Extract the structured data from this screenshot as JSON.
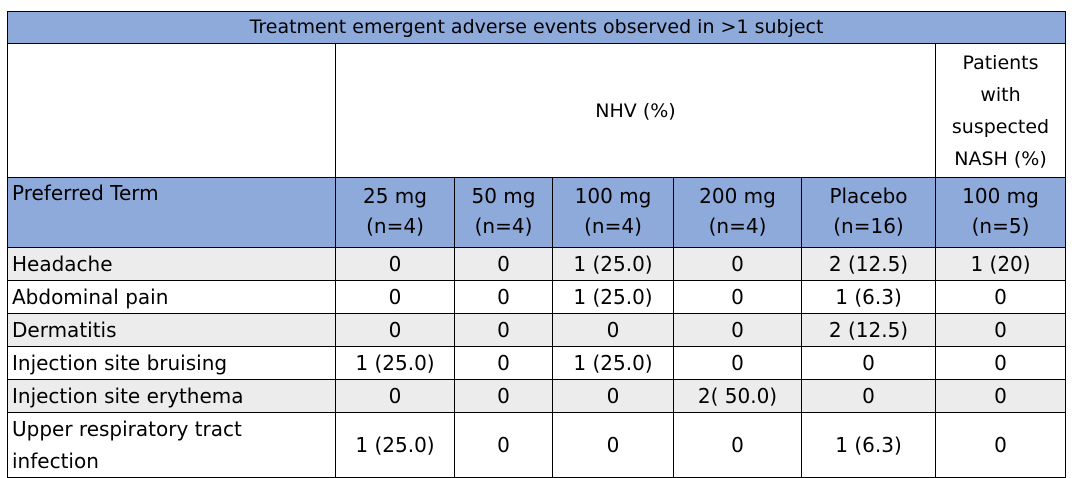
{
  "title": "Treatment emergent adverse events observed in >1 subject",
  "group_nhv": "NHV (%)",
  "group_nash": "Patients with suspected NASH (%)",
  "group_nash_lines": [
    "Patients",
    "with",
    "suspected",
    "NASH (%)"
  ],
  "term_header": "Preferred Term",
  "columns": [
    {
      "dose": "25 mg",
      "n": "(n=4)"
    },
    {
      "dose": "50 mg",
      "n": "(n=4)"
    },
    {
      "dose": "100 mg",
      "n": "(n=4)"
    },
    {
      "dose": "200 mg",
      "n": "(n=4)"
    },
    {
      "dose": "Placebo",
      "n": "(n=16)"
    },
    {
      "dose": "100 mg",
      "n": "(n=5)"
    }
  ],
  "rows": [
    {
      "term": "Headache",
      "values": [
        "0",
        "0",
        "1 (25.0)",
        "0",
        "2 (12.5)",
        "1 (20)"
      ]
    },
    {
      "term": "Abdominal pain",
      "values": [
        "0",
        "0",
        "1 (25.0)",
        "0",
        "1 (6.3)",
        "0"
      ]
    },
    {
      "term": "Dermatitis",
      "values": [
        "0",
        "0",
        "0",
        "0",
        "2 (12.5)",
        "0"
      ]
    },
    {
      "term": "Injection site bruising",
      "values": [
        "1 (25.0)",
        "0",
        "1 (25.0)",
        "0",
        "0",
        "0"
      ]
    },
    {
      "term": "Injection site erythema",
      "values": [
        "0",
        "0",
        "0",
        "2( 50.0)",
        "0",
        "0"
      ]
    },
    {
      "term": "Upper respiratory tract infection",
      "values": [
        "1 (25.0)",
        "0",
        "0",
        "0",
        "1 (6.3)",
        "0"
      ]
    }
  ]
}
